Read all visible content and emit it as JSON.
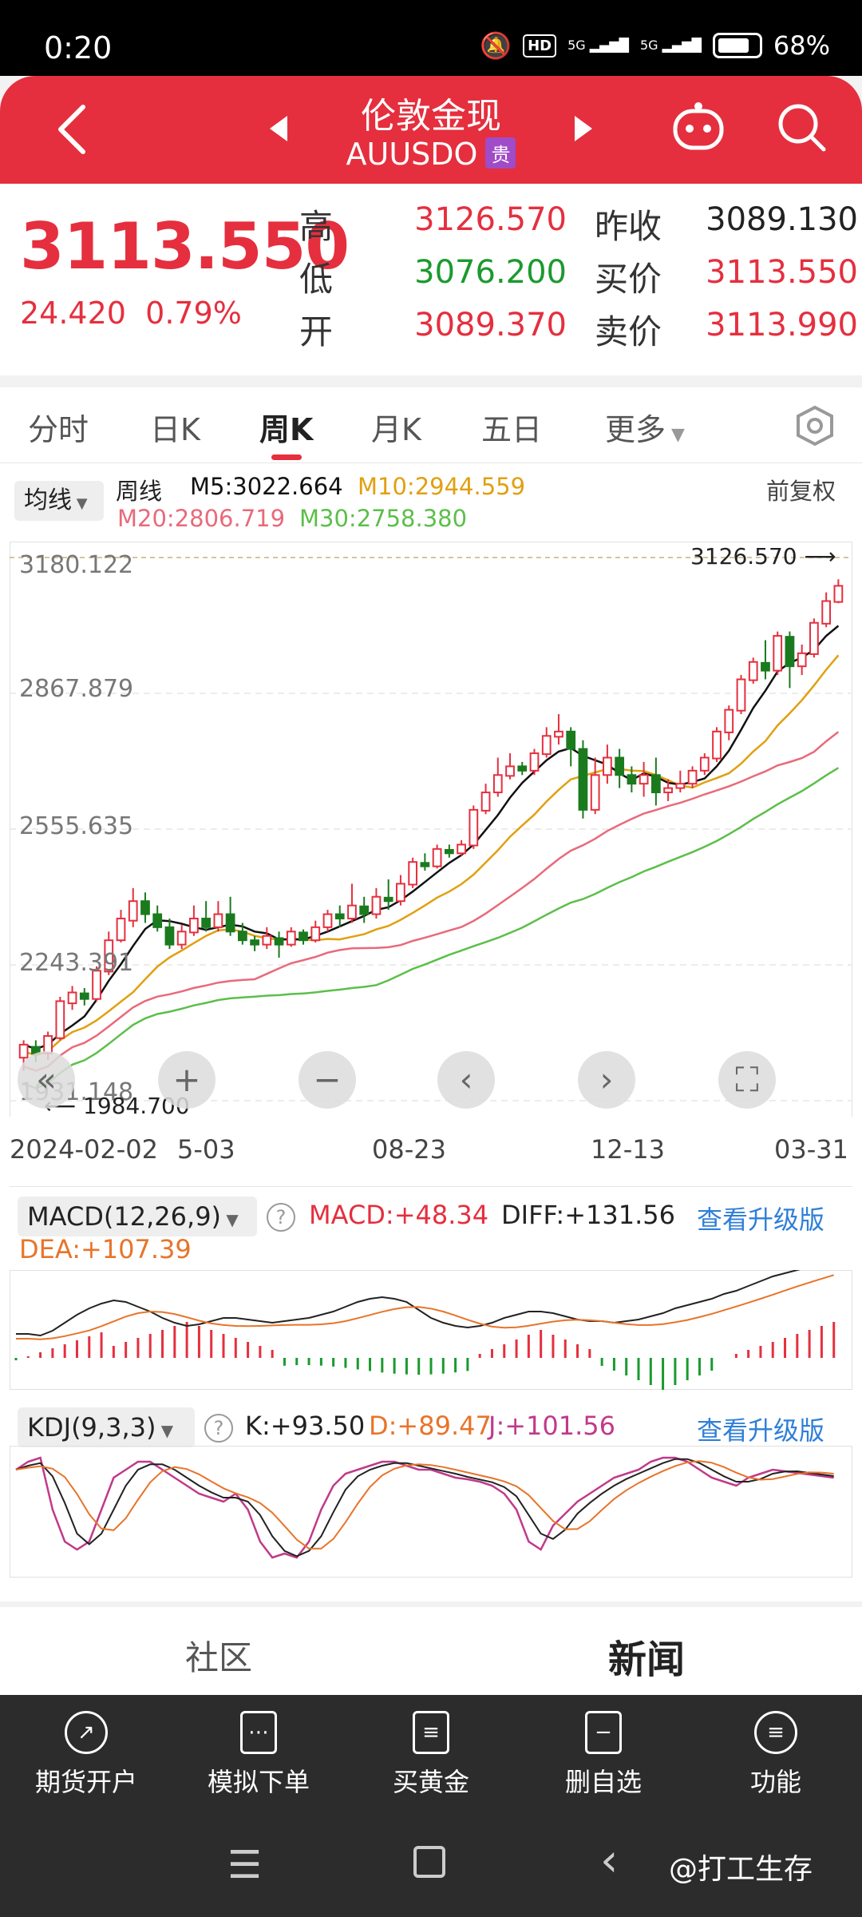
{
  "status_bar": {
    "time": "0:20",
    "battery": "68%",
    "network1": "5G",
    "network2": "5G",
    "hd": "HD"
  },
  "header": {
    "title": "伦敦金现",
    "code": "AUUSDO",
    "badge": "贵"
  },
  "quote": {
    "price": "3113.550",
    "change": "24.420",
    "change_pct": "0.79%",
    "high_label": "高",
    "high": "3126.570",
    "low_label": "低",
    "low": "3076.200",
    "open_label": "开",
    "open": "3089.370",
    "prev_close_label": "昨收",
    "prev_close": "3089.130",
    "bid_label": "买价",
    "bid": "3113.550",
    "ask_label": "卖价",
    "ask": "3113.990"
  },
  "tabs": [
    "分时",
    "日K",
    "周K",
    "月K",
    "五日",
    "更多"
  ],
  "active_tab": 2,
  "ma": {
    "tag": "均线",
    "period": "周线",
    "m5": "M5:3022.664",
    "m10": "M10:2944.559",
    "m20": "M20:2806.719",
    "m30": "M30:2758.380",
    "adjust": "前复权",
    "colors": {
      "m5": "#111111",
      "m10": "#e0a010",
      "m20": "#e86a7a",
      "m30": "#5cbf4a"
    }
  },
  "chart_data": {
    "type": "candlestick",
    "y_ticks": [
      "3180.122",
      "2867.879",
      "2555.635",
      "2243.391",
      "1931.148"
    ],
    "x_ticks": [
      "2024-02-02",
      "5-03",
      "08-23",
      "12-13",
      "03-31"
    ],
    "ylim": [
      1931.148,
      3180.122
    ],
    "high_marker": "3126.570",
    "low_marker": "1984.700",
    "candles": [
      [
        2030,
        2060,
        2000,
        2070
      ],
      [
        2055,
        2040,
        2020,
        2070
      ],
      [
        2040,
        2080,
        2025,
        2090
      ],
      [
        2075,
        2160,
        2070,
        2170
      ],
      [
        2155,
        2180,
        2140,
        2195
      ],
      [
        2178,
        2165,
        2150,
        2190
      ],
      [
        2165,
        2230,
        2160,
        2240
      ],
      [
        2228,
        2300,
        2220,
        2320
      ],
      [
        2300,
        2350,
        2295,
        2370
      ],
      [
        2345,
        2390,
        2330,
        2420
      ],
      [
        2390,
        2360,
        2340,
        2410
      ],
      [
        2360,
        2330,
        2320,
        2380
      ],
      [
        2330,
        2290,
        2280,
        2350
      ],
      [
        2290,
        2320,
        2280,
        2335
      ],
      [
        2318,
        2350,
        2310,
        2380
      ],
      [
        2350,
        2330,
        2320,
        2390
      ],
      [
        2330,
        2360,
        2320,
        2390
      ],
      [
        2360,
        2320,
        2310,
        2400
      ],
      [
        2320,
        2300,
        2290,
        2340
      ],
      [
        2300,
        2290,
        2275,
        2310
      ],
      [
        2290,
        2310,
        2280,
        2330
      ],
      [
        2305,
        2290,
        2260,
        2320
      ],
      [
        2290,
        2320,
        2285,
        2330
      ],
      [
        2318,
        2300,
        2290,
        2325
      ],
      [
        2300,
        2330,
        2295,
        2345
      ],
      [
        2330,
        2360,
        2320,
        2370
      ],
      [
        2360,
        2350,
        2330,
        2380
      ],
      [
        2350,
        2380,
        2340,
        2430
      ],
      [
        2378,
        2360,
        2340,
        2400
      ],
      [
        2360,
        2400,
        2350,
        2420
      ],
      [
        2398,
        2390,
        2370,
        2440
      ],
      [
        2390,
        2430,
        2380,
        2450
      ],
      [
        2428,
        2480,
        2420,
        2490
      ],
      [
        2478,
        2470,
        2460,
        2500
      ],
      [
        2470,
        2510,
        2465,
        2520
      ],
      [
        2508,
        2500,
        2490,
        2520
      ],
      [
        2500,
        2520,
        2495,
        2530
      ],
      [
        2518,
        2600,
        2510,
        2610
      ],
      [
        2598,
        2640,
        2590,
        2660
      ],
      [
        2640,
        2680,
        2630,
        2720
      ],
      [
        2678,
        2700,
        2670,
        2730
      ],
      [
        2700,
        2690,
        2680,
        2710
      ],
      [
        2690,
        2730,
        2680,
        2740
      ],
      [
        2728,
        2770,
        2720,
        2790
      ],
      [
        2768,
        2780,
        2750,
        2820
      ],
      [
        2780,
        2740,
        2700,
        2790
      ],
      [
        2740,
        2600,
        2580,
        2760
      ],
      [
        2600,
        2680,
        2590,
        2720
      ],
      [
        2680,
        2720,
        2660,
        2750
      ],
      [
        2720,
        2680,
        2650,
        2740
      ],
      [
        2680,
        2660,
        2640,
        2700
      ],
      [
        2660,
        2680,
        2630,
        2710
      ],
      [
        2680,
        2640,
        2610,
        2720
      ],
      [
        2640,
        2650,
        2620,
        2670
      ],
      [
        2650,
        2660,
        2640,
        2690
      ],
      [
        2660,
        2690,
        2650,
        2700
      ],
      [
        2690,
        2720,
        2680,
        2730
      ],
      [
        2718,
        2780,
        2710,
        2790
      ],
      [
        2778,
        2830,
        2760,
        2840
      ],
      [
        2828,
        2900,
        2820,
        2910
      ],
      [
        2898,
        2940,
        2890,
        2950
      ],
      [
        2938,
        2920,
        2900,
        2990
      ],
      [
        2920,
        3000,
        2910,
        3010
      ],
      [
        2998,
        2930,
        2880,
        3010
      ],
      [
        2930,
        2960,
        2910,
        2980
      ],
      [
        2958,
        3030,
        2950,
        3040
      ],
      [
        3028,
        3080,
        3020,
        3100
      ],
      [
        3078,
        3115,
        3075,
        3130
      ]
    ]
  },
  "controls": [
    "«",
    "+",
    "−",
    "‹",
    "›",
    "⛶"
  ],
  "macd": {
    "tag": "MACD(12,26,9)",
    "macd": "MACD:+48.34",
    "diff": "DIFF:+131.56",
    "dea": "DEA:+107.39",
    "upgrade": "查看升级版"
  },
  "kdj": {
    "tag": "KDJ(9,3,3)",
    "k": "K:+93.50",
    "d": "D:+89.47",
    "j": "J:+101.56",
    "upgrade": "查看升级版"
  },
  "social": {
    "left": "社区",
    "right": "新闻"
  },
  "bottom_nav": [
    {
      "label": "期货开户",
      "icon": "compass-icon"
    },
    {
      "label": "模拟下单",
      "icon": "document-icon"
    },
    {
      "label": "买黄金",
      "icon": "list-icon"
    },
    {
      "label": "删自选",
      "icon": "minus-box-icon"
    },
    {
      "label": "功能",
      "icon": "menu-icon"
    }
  ],
  "watermark": "@打工生存"
}
